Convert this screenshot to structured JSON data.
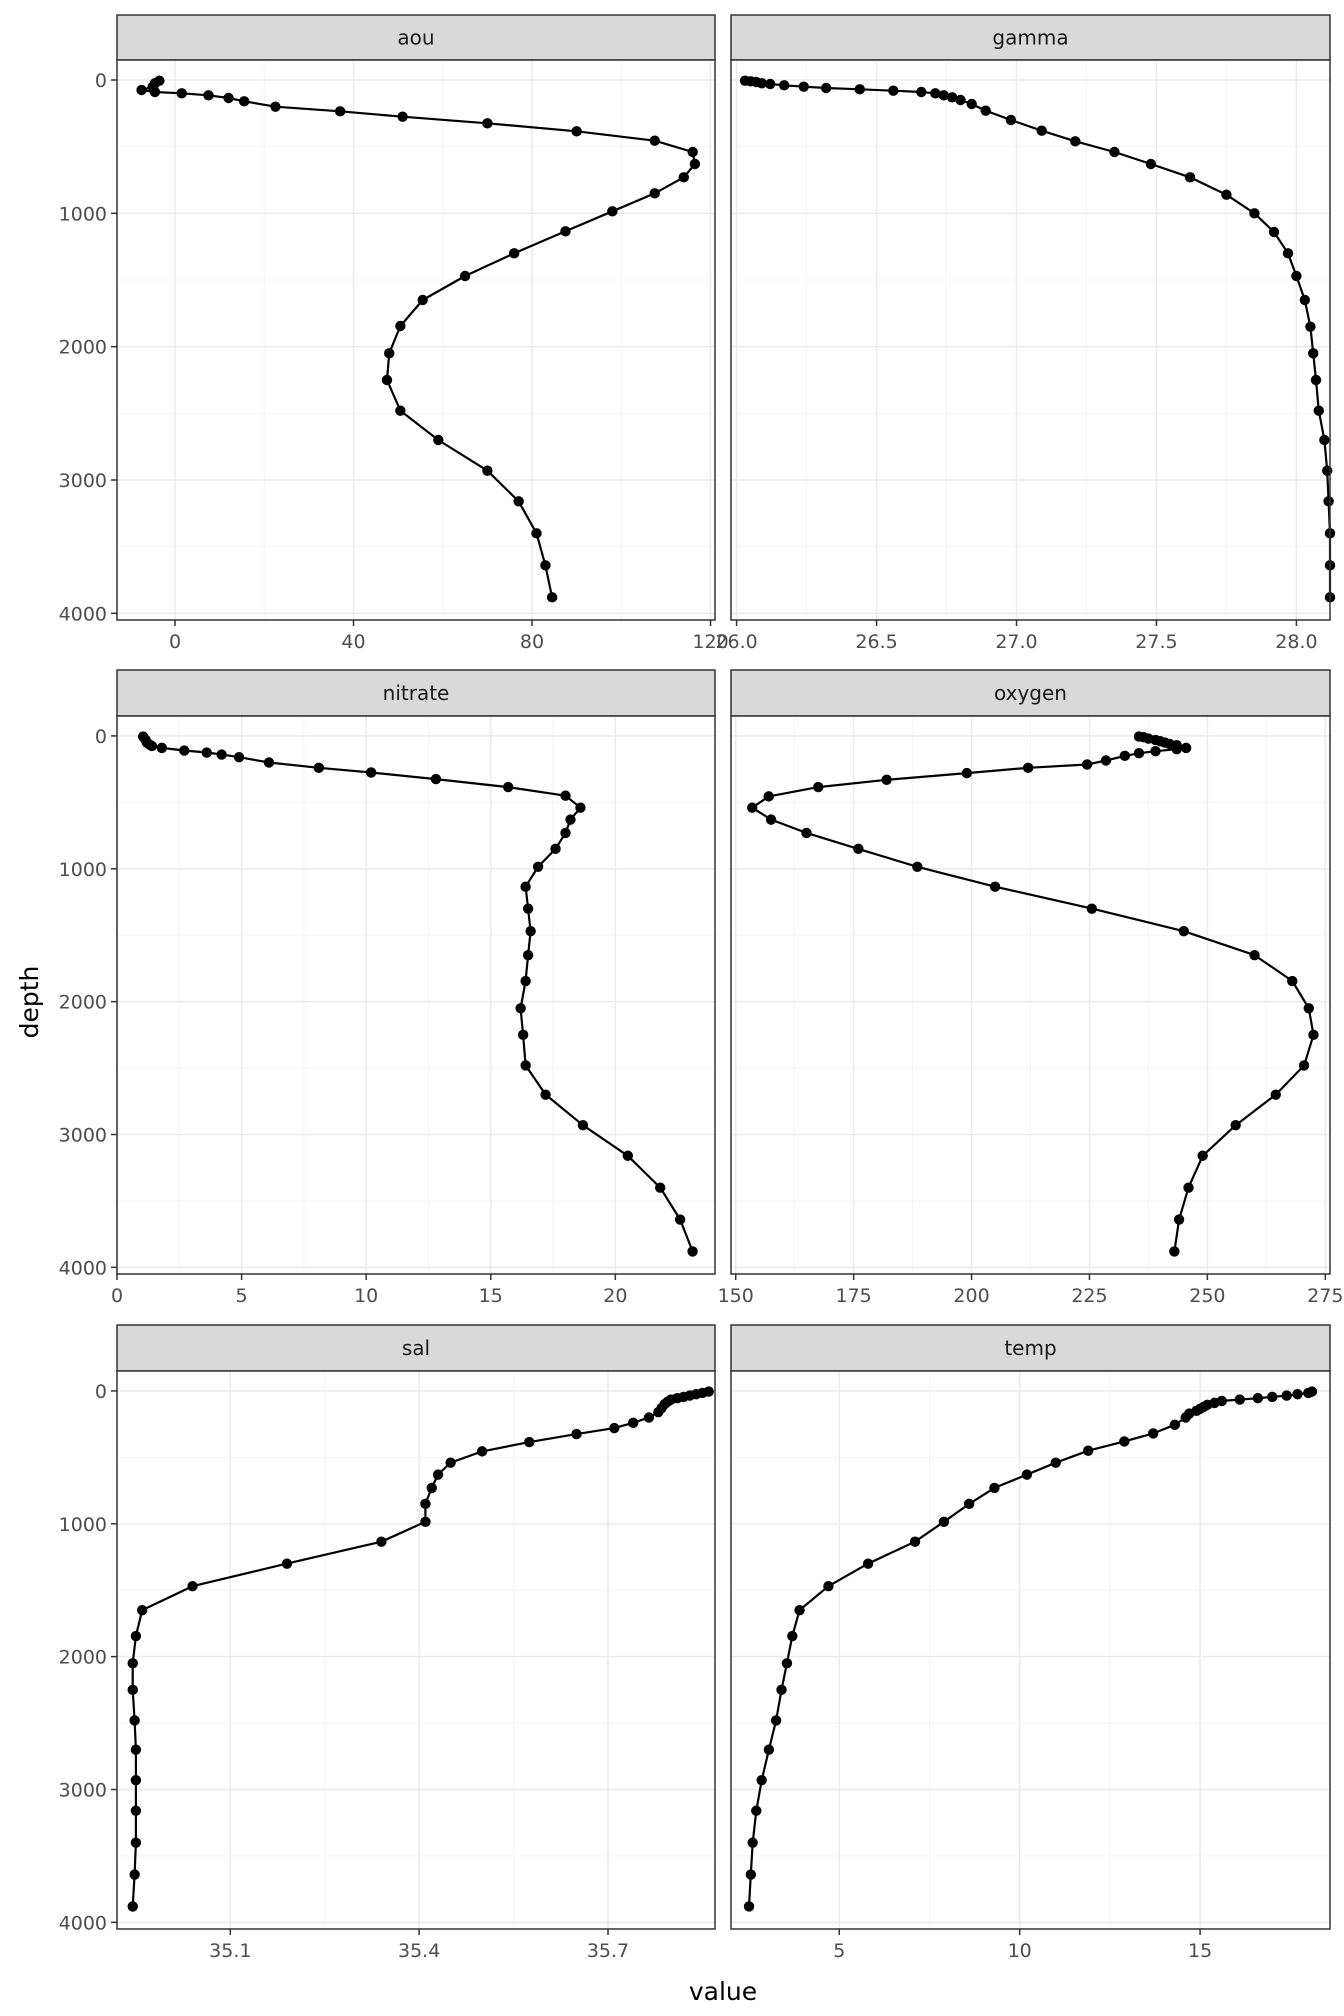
{
  "chart_data": {
    "type": "line",
    "facet_layout": "3 rows x 2 columns, free x scales, shared y",
    "xlabel": "value",
    "ylabel": "depth",
    "y_reversed": true,
    "ylim": [
      -150,
      4050
    ],
    "y_ticks": [
      0,
      1000,
      2000,
      3000,
      4000
    ],
    "grid": true,
    "theme": "bw",
    "colors": {
      "line": "#000000",
      "point": "#000000",
      "strip_fill": "#d9d9d9",
      "grid_major": "#ebebeb",
      "grid_minor": "#f5f5f5",
      "panel_border": "#333333"
    },
    "panels": [
      {
        "title": "aou",
        "xlim": [
          -13,
          121
        ],
        "x_ticks": [
          0,
          40,
          80,
          120
        ],
        "x_tick_labels": [
          "0",
          "40",
          "80",
          "120"
        ],
        "points": [
          [
            -3.5,
            5
          ],
          [
            -4.5,
            25
          ],
          [
            -5,
            50
          ],
          [
            -7.5,
            75
          ],
          [
            -4.5,
            90
          ],
          [
            1.5,
            100
          ],
          [
            7.5,
            115
          ],
          [
            12,
            135
          ],
          [
            15.5,
            160
          ],
          [
            22.5,
            200
          ],
          [
            37,
            235
          ],
          [
            51,
            275
          ],
          [
            70,
            325
          ],
          [
            90,
            385
          ],
          [
            107.5,
            455
          ],
          [
            116,
            540
          ],
          [
            116.5,
            630
          ],
          [
            114,
            730
          ],
          [
            107.5,
            850
          ],
          [
            98,
            985
          ],
          [
            87.5,
            1135
          ],
          [
            76,
            1300
          ],
          [
            65,
            1470
          ],
          [
            55.5,
            1650
          ],
          [
            50.5,
            1845
          ],
          [
            48,
            2050
          ],
          [
            47.5,
            2250
          ],
          [
            50.5,
            2480
          ],
          [
            59,
            2700
          ],
          [
            70,
            2930
          ],
          [
            77,
            3160
          ],
          [
            81,
            3400
          ],
          [
            83,
            3640
          ],
          [
            84.5,
            3880
          ]
        ]
      },
      {
        "title": "gamma",
        "xlim": [
          25.98,
          28.12
        ],
        "x_ticks": [
          26.0,
          26.5,
          27.0,
          27.5,
          28.0
        ],
        "x_tick_labels": [
          "26.0",
          "26.5",
          "27.0",
          "27.5",
          "28.0"
        ],
        "points": [
          [
            26.03,
            5
          ],
          [
            26.05,
            10
          ],
          [
            26.07,
            15
          ],
          [
            26.09,
            25
          ],
          [
            26.12,
            30
          ],
          [
            26.17,
            40
          ],
          [
            26.24,
            50
          ],
          [
            26.32,
            60
          ],
          [
            26.44,
            70
          ],
          [
            26.56,
            80
          ],
          [
            26.66,
            90
          ],
          [
            26.71,
            100
          ],
          [
            26.74,
            115
          ],
          [
            26.77,
            130
          ],
          [
            26.8,
            150
          ],
          [
            26.84,
            180
          ],
          [
            26.89,
            230
          ],
          [
            26.98,
            300
          ],
          [
            27.09,
            380
          ],
          [
            27.21,
            460
          ],
          [
            27.35,
            540
          ],
          [
            27.48,
            630
          ],
          [
            27.62,
            730
          ],
          [
            27.75,
            860
          ],
          [
            27.85,
            1000
          ],
          [
            27.92,
            1140
          ],
          [
            27.97,
            1300
          ],
          [
            28.0,
            1470
          ],
          [
            28.03,
            1650
          ],
          [
            28.05,
            1850
          ],
          [
            28.06,
            2050
          ],
          [
            28.07,
            2250
          ],
          [
            28.08,
            2480
          ],
          [
            28.1,
            2700
          ],
          [
            28.11,
            2930
          ],
          [
            28.115,
            3160
          ],
          [
            28.12,
            3400
          ],
          [
            28.12,
            3640
          ],
          [
            28.12,
            3880
          ]
        ]
      },
      {
        "title": "nitrate",
        "xlim": [
          0,
          24
        ],
        "x_ticks": [
          0,
          5,
          10,
          15,
          20
        ],
        "x_tick_labels": [
          "0",
          "5",
          "10",
          "15",
          "20"
        ],
        "points": [
          [
            1.05,
            5
          ],
          [
            1.15,
            30
          ],
          [
            1.2,
            50
          ],
          [
            1.3,
            65
          ],
          [
            1.4,
            75
          ],
          [
            1.8,
            90
          ],
          [
            2.7,
            110
          ],
          [
            3.6,
            125
          ],
          [
            4.2,
            140
          ],
          [
            4.9,
            160
          ],
          [
            6.1,
            200
          ],
          [
            8.1,
            240
          ],
          [
            10.2,
            275
          ],
          [
            12.8,
            325
          ],
          [
            15.7,
            385
          ],
          [
            18.0,
            450
          ],
          [
            18.6,
            540
          ],
          [
            18.2,
            630
          ],
          [
            18.0,
            730
          ],
          [
            17.6,
            850
          ],
          [
            16.9,
            985
          ],
          [
            16.4,
            1135
          ],
          [
            16.5,
            1300
          ],
          [
            16.6,
            1470
          ],
          [
            16.5,
            1650
          ],
          [
            16.4,
            1845
          ],
          [
            16.2,
            2050
          ],
          [
            16.3,
            2250
          ],
          [
            16.4,
            2480
          ],
          [
            17.2,
            2700
          ],
          [
            18.7,
            2930
          ],
          [
            20.5,
            3160
          ],
          [
            21.8,
            3400
          ],
          [
            22.6,
            3640
          ],
          [
            23.1,
            3880
          ]
        ]
      },
      {
        "title": "oxygen",
        "xlim": [
          149,
          276
        ],
        "x_ticks": [
          150,
          175,
          200,
          225,
          250,
          275
        ],
        "x_tick_labels": [
          "150",
          "175",
          "200",
          "225",
          "250",
          "275"
        ],
        "points": [
          [
            235.5,
            5
          ],
          [
            236.5,
            10
          ],
          [
            237.5,
            20
          ],
          [
            239,
            30
          ],
          [
            240,
            40
          ],
          [
            241,
            50
          ],
          [
            242,
            60
          ],
          [
            243.5,
            70
          ],
          [
            245.5,
            90
          ],
          [
            243.5,
            100
          ],
          [
            239,
            115
          ],
          [
            235.5,
            130
          ],
          [
            232.5,
            150
          ],
          [
            228.5,
            185
          ],
          [
            224.5,
            215
          ],
          [
            212,
            240
          ],
          [
            199,
            280
          ],
          [
            182,
            330
          ],
          [
            167.5,
            385
          ],
          [
            157,
            455
          ],
          [
            153.5,
            540
          ],
          [
            157.5,
            630
          ],
          [
            165,
            730
          ],
          [
            176,
            850
          ],
          [
            188.5,
            985
          ],
          [
            205,
            1135
          ],
          [
            225.5,
            1300
          ],
          [
            245,
            1470
          ],
          [
            260,
            1650
          ],
          [
            268,
            1845
          ],
          [
            271.5,
            2050
          ],
          [
            272.5,
            2250
          ],
          [
            270.5,
            2480
          ],
          [
            264.5,
            2700
          ],
          [
            256,
            2930
          ],
          [
            249,
            3160
          ],
          [
            246,
            3400
          ],
          [
            244,
            3640
          ],
          [
            243,
            3880
          ]
        ]
      },
      {
        "title": "sal",
        "xlim": [
          34.92,
          35.87
        ],
        "x_ticks": [
          35.1,
          35.4,
          35.7
        ],
        "x_tick_labels": [
          "35.1",
          "35.4",
          "35.7"
        ],
        "points": [
          [
            35.86,
            5
          ],
          [
            35.85,
            15
          ],
          [
            35.84,
            25
          ],
          [
            35.83,
            35
          ],
          [
            35.82,
            45
          ],
          [
            35.81,
            55
          ],
          [
            35.8,
            65
          ],
          [
            35.795,
            80
          ],
          [
            35.79,
            100
          ],
          [
            35.785,
            130
          ],
          [
            35.78,
            160
          ],
          [
            35.765,
            200
          ],
          [
            35.74,
            240
          ],
          [
            35.71,
            280
          ],
          [
            35.65,
            325
          ],
          [
            35.575,
            385
          ],
          [
            35.5,
            455
          ],
          [
            35.45,
            540
          ],
          [
            35.43,
            630
          ],
          [
            35.42,
            730
          ],
          [
            35.41,
            850
          ],
          [
            35.41,
            985
          ],
          [
            35.34,
            1135
          ],
          [
            35.19,
            1300
          ],
          [
            35.04,
            1470
          ],
          [
            34.96,
            1650
          ],
          [
            34.95,
            1845
          ],
          [
            34.945,
            2050
          ],
          [
            34.945,
            2250
          ],
          [
            34.948,
            2480
          ],
          [
            34.95,
            2700
          ],
          [
            34.95,
            2930
          ],
          [
            34.95,
            3160
          ],
          [
            34.95,
            3400
          ],
          [
            34.948,
            3640
          ],
          [
            34.945,
            3880
          ]
        ]
      },
      {
        "title": "temp",
        "xlim": [
          2.0,
          18.6
        ],
        "x_ticks": [
          5,
          10,
          15
        ],
        "x_tick_labels": [
          "5",
          "10",
          "15"
        ],
        "points": [
          [
            18.1,
            5
          ],
          [
            18.0,
            15
          ],
          [
            17.7,
            25
          ],
          [
            17.4,
            35
          ],
          [
            17.0,
            45
          ],
          [
            16.6,
            55
          ],
          [
            16.1,
            65
          ],
          [
            15.6,
            75
          ],
          [
            15.4,
            90
          ],
          [
            15.2,
            105
          ],
          [
            15.1,
            120
          ],
          [
            15.0,
            135
          ],
          [
            14.9,
            150
          ],
          [
            14.7,
            170
          ],
          [
            14.6,
            200
          ],
          [
            14.3,
            255
          ],
          [
            13.7,
            320
          ],
          [
            12.9,
            380
          ],
          [
            11.9,
            450
          ],
          [
            11.0,
            540
          ],
          [
            10.2,
            630
          ],
          [
            9.3,
            730
          ],
          [
            8.6,
            850
          ],
          [
            7.9,
            985
          ],
          [
            7.1,
            1135
          ],
          [
            5.8,
            1300
          ],
          [
            4.7,
            1470
          ],
          [
            3.9,
            1650
          ],
          [
            3.7,
            1845
          ],
          [
            3.55,
            2050
          ],
          [
            3.4,
            2250
          ],
          [
            3.25,
            2480
          ],
          [
            3.05,
            2700
          ],
          [
            2.85,
            2930
          ],
          [
            2.7,
            3160
          ],
          [
            2.6,
            3400
          ],
          [
            2.55,
            3640
          ],
          [
            2.5,
            3880
          ]
        ]
      }
    ]
  }
}
